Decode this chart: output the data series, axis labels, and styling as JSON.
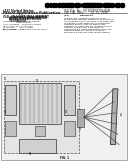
{
  "background_color": "#ffffff",
  "barcode_color": "#000000",
  "text_color": "#333333",
  "header_lines": [
    "United States",
    "Patent Application Publication"
  ],
  "doc_info": [
    "Pub. No.: US 2008/0170228 A1",
    "Pub. Date: Jul. 17, 2008"
  ],
  "title_text": "3D SHAPE MEASUREMENT APPARATUS AND METHOD USING STEREO MOIRE TECHNIQUE",
  "diagram_bg": "#f0f0f0",
  "diagram_border": "#888888"
}
